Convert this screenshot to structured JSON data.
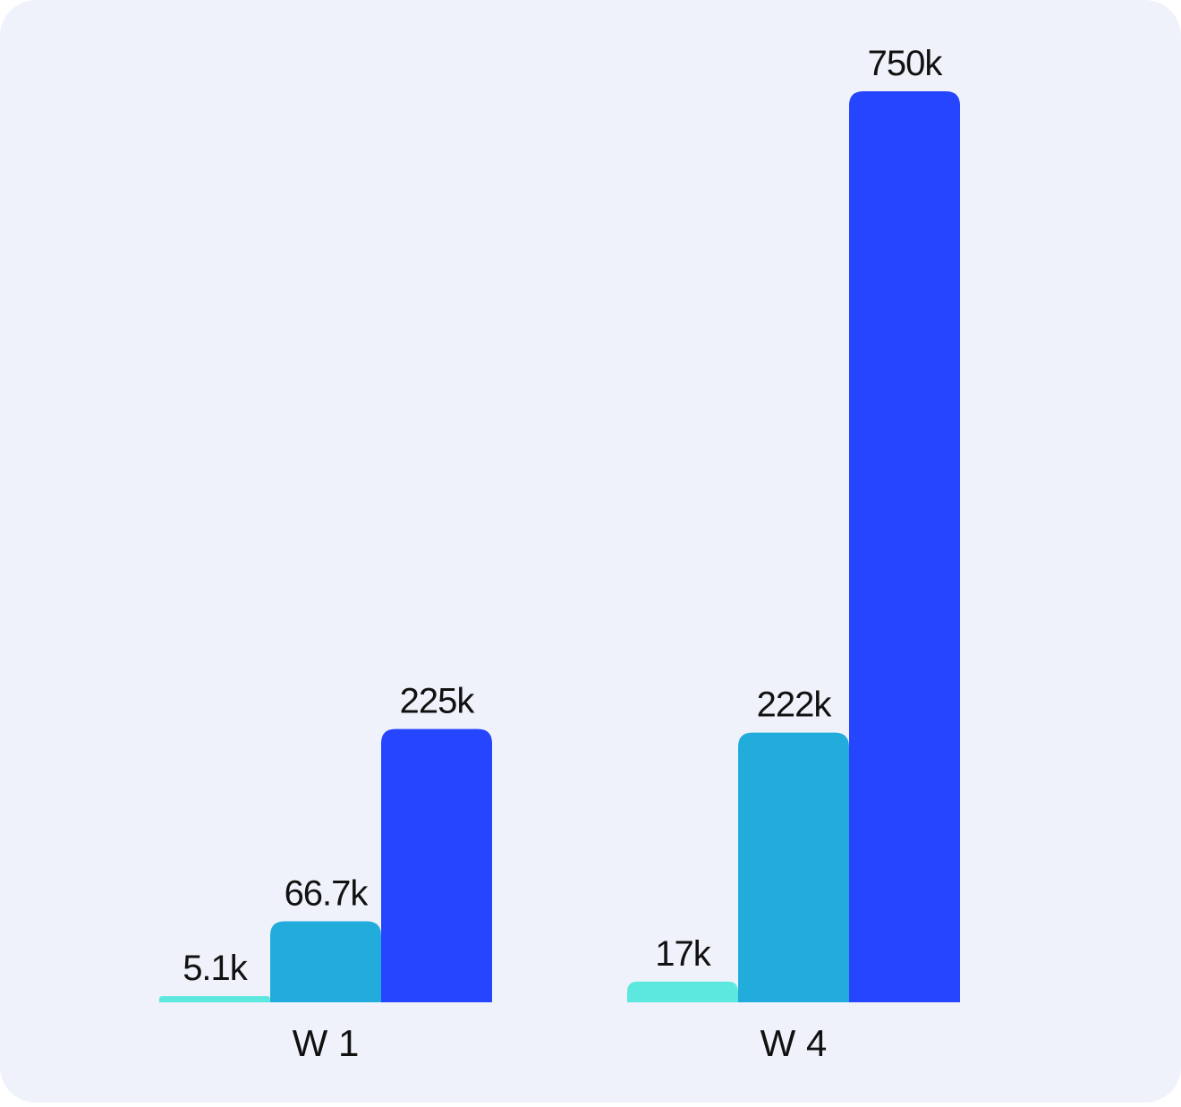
{
  "chart_data": {
    "type": "bar",
    "categories": [
      "W 1",
      "W 4"
    ],
    "series": [
      {
        "color": "#5ce8de",
        "values": [
          5100,
          17000
        ],
        "value_labels": [
          "5.1k",
          "17k"
        ]
      },
      {
        "color": "#22acdc",
        "values": [
          66700,
          222000
        ],
        "value_labels": [
          "66.7k",
          "222k"
        ]
      },
      {
        "color": "#2645ff",
        "values": [
          225000,
          750000
        ],
        "value_labels": [
          "225k",
          "750k"
        ]
      }
    ]
  }
}
